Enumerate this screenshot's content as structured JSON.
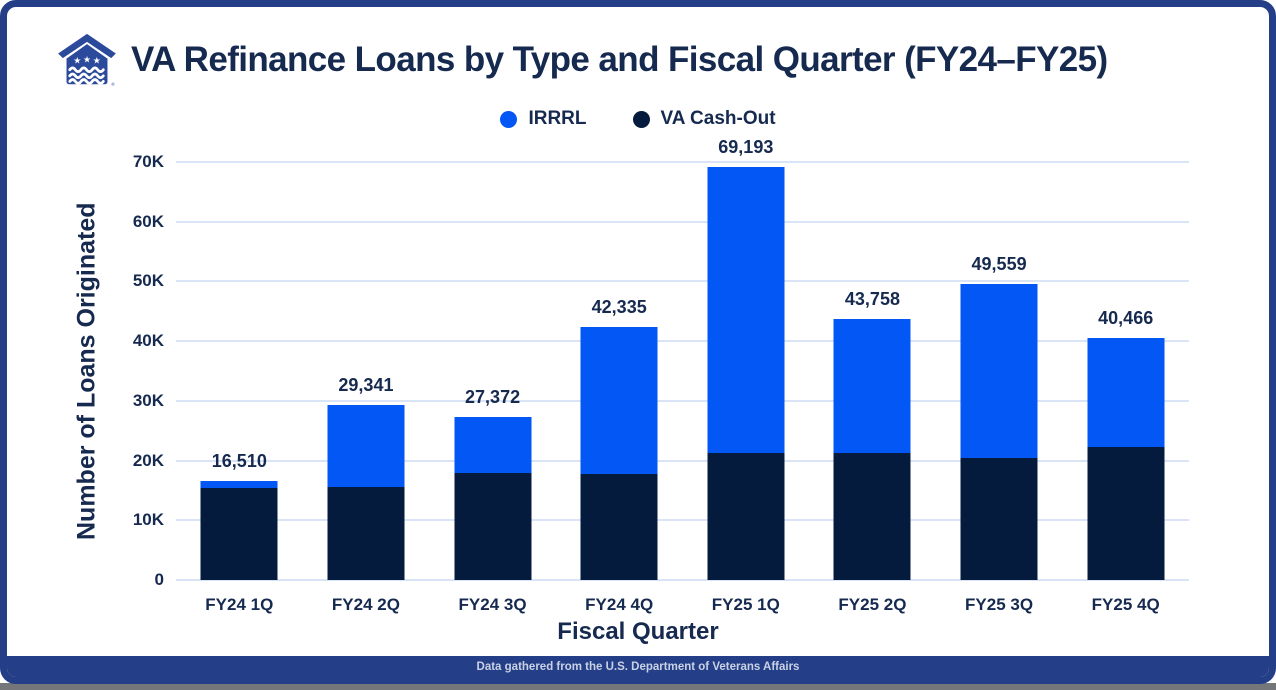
{
  "header": {
    "title": "VA Refinance Loans by Type and Fiscal Quarter (FY24–FY25)",
    "logo": "va-house-logo"
  },
  "legend": [
    {
      "label": "IRRRL",
      "color": "#0357F5"
    },
    {
      "label": "VA Cash-Out",
      "color": "#041B3D"
    }
  ],
  "chart_data": {
    "type": "bar",
    "variant": "stacked",
    "title": "VA Refinance Loans by Type and Fiscal Quarter (FY24–FY25)",
    "xlabel": "Fiscal Quarter",
    "ylabel": "Number of Loans Originated",
    "ylim": [
      0,
      70000
    ],
    "grid": "horizontal",
    "legend_position": "top-center",
    "stack_order_bottom_to_top": [
      "VA Cash-Out",
      "IRRRL"
    ],
    "categories": [
      "FY24 1Q",
      "FY24 2Q",
      "FY24 3Q",
      "FY24 4Q",
      "FY25 1Q",
      "FY25 2Q",
      "FY25 3Q",
      "FY25 4Q"
    ],
    "series": [
      {
        "name": "VA Cash-Out",
        "color": "#041B3D",
        "values": [
          15450,
          15500,
          17950,
          17700,
          21350,
          21200,
          20500,
          22300
        ]
      },
      {
        "name": "IRRRL",
        "color": "#0357F5",
        "values": [
          1060,
          13841,
          9422,
          24635,
          47843,
          22558,
          29059,
          18166
        ]
      }
    ],
    "totals": [
      16510,
      29341,
      27372,
      42335,
      69193,
      43758,
      49559,
      40466
    ],
    "total_labels": [
      "16,510",
      "29,341",
      "27,372",
      "42,335",
      "69,193",
      "43,758",
      "49,559",
      "40,466"
    ],
    "yticks": [
      {
        "value": 0,
        "label": "0"
      },
      {
        "value": 10000,
        "label": "10K"
      },
      {
        "value": 20000,
        "label": "20K"
      },
      {
        "value": 30000,
        "label": "30K"
      },
      {
        "value": 40000,
        "label": "40K"
      },
      {
        "value": 50000,
        "label": "50K"
      },
      {
        "value": 60000,
        "label": "60K"
      },
      {
        "value": 70000,
        "label": "70K"
      }
    ]
  },
  "footer": {
    "caption": "Data gathered from the U.S. Department of Veterans Affairs"
  },
  "colors": {
    "irrrl_blue": "#0357F5",
    "cash_out_navy": "#041B3D",
    "text_navy": "#16294F",
    "gridline": "#D9E4F6",
    "frame_border": "#243F87",
    "logo_blue": "#2B4A9B",
    "caption_text": "#C9D2E4",
    "bottom_strip_gray": "#75767A"
  }
}
